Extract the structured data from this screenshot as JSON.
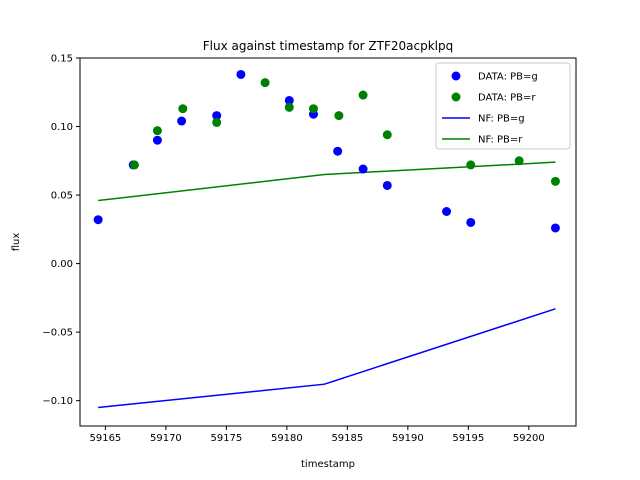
{
  "chart_data": {
    "type": "scatter+line",
    "title": "Flux against timestamp for ZTF20acpklpq",
    "xlabel": "timestamp",
    "ylabel": "flux",
    "xlim": [
      59162.9,
      59203.9
    ],
    "ylim": [
      -0.1185,
      0.15
    ],
    "xticks": [
      59165,
      59170,
      59175,
      59180,
      59185,
      59190,
      59195,
      59200
    ],
    "yticks": [
      -0.1,
      -0.05,
      0.0,
      0.05,
      0.1,
      0.15
    ],
    "xtick_labels": [
      "59165",
      "59170",
      "59175",
      "59180",
      "59185",
      "59190",
      "59195",
      "59200"
    ],
    "ytick_labels": [
      "−0.10",
      "−0.05",
      "0.00",
      "0.05",
      "0.10",
      "0.15"
    ],
    "grid": false,
    "legend_position": "top-right",
    "series": [
      {
        "name": "DATA: PB=g",
        "kind": "scatter",
        "color": "#0000ff",
        "x": [
          59164.4,
          59167.3,
          59169.3,
          59171.3,
          59174.2,
          59176.2,
          59180.2,
          59182.2,
          59184.2,
          59186.3,
          59188.3,
          59193.2,
          59195.2,
          59202.2
        ],
        "y": [
          0.032,
          0.072,
          0.09,
          0.104,
          0.108,
          0.138,
          0.119,
          0.109,
          0.082,
          0.069,
          0.057,
          0.038,
          0.03,
          0.026
        ]
      },
      {
        "name": "DATA: PB=r",
        "kind": "scatter",
        "color": "#008000",
        "x": [
          59167.4,
          59169.3,
          59171.4,
          59174.2,
          59178.2,
          59180.2,
          59182.2,
          59184.3,
          59186.3,
          59188.3,
          59195.2,
          59199.2,
          59202.2
        ],
        "y": [
          0.072,
          0.097,
          0.113,
          0.103,
          0.132,
          0.114,
          0.113,
          0.108,
          0.123,
          0.094,
          0.072,
          0.075,
          0.06
        ]
      },
      {
        "name": "NF: PB=g",
        "kind": "line",
        "color": "#0000ff",
        "x": [
          59164.4,
          59183.1,
          59202.2
        ],
        "y": [
          -0.105,
          -0.088,
          -0.033
        ]
      },
      {
        "name": "NF: PB=r",
        "kind": "line",
        "color": "#008000",
        "x": [
          59164.4,
          59183.1,
          59202.2
        ],
        "y": [
          0.046,
          0.065,
          0.074
        ]
      }
    ]
  }
}
